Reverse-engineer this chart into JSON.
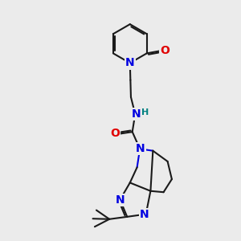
{
  "background_color": "#ebebeb",
  "atom_colors": {
    "C": "#1a1a1a",
    "N": "#0000e0",
    "O": "#e00000",
    "H": "#008080"
  },
  "bond_color": "#1a1a1a",
  "bond_width": 1.5,
  "font_size_atoms": 10,
  "font_size_small": 8
}
